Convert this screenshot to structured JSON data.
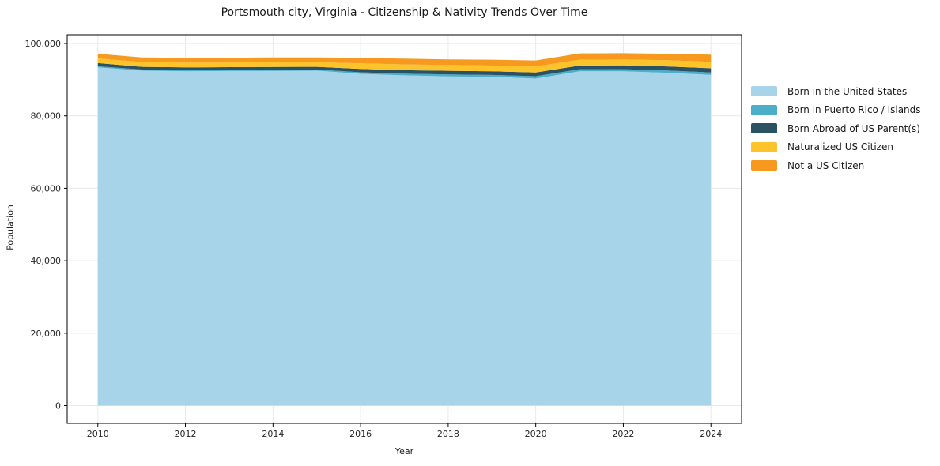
{
  "chart_data": {
    "type": "area",
    "stacked": true,
    "title": "Portsmouth city, Virginia - Citizenship & Nativity Trends Over Time",
    "xlabel": "Year",
    "ylabel": "Population",
    "x": [
      2010,
      2011,
      2012,
      2013,
      2014,
      2015,
      2016,
      2017,
      2018,
      2019,
      2020,
      2021,
      2022,
      2023,
      2024
    ],
    "series": [
      {
        "name": "Born in the United States",
        "color": "#A7D4E9",
        "values": [
          93400,
          92500,
          92300,
          92400,
          92400,
          92500,
          91600,
          91200,
          90900,
          90800,
          90300,
          92300,
          92300,
          91900,
          91300
        ]
      },
      {
        "name": "Born in Puerto Rico / Islands",
        "color": "#4CAEC9",
        "values": [
          300,
          300,
          350,
          300,
          350,
          300,
          450,
          450,
          550,
          500,
          650,
          600,
          600,
          650,
          700
        ]
      },
      {
        "name": "Born Abroad of US Parent(s)",
        "color": "#2B5263",
        "values": [
          900,
          750,
          750,
          750,
          750,
          750,
          900,
          950,
          1000,
          1000,
          1050,
          1000,
          1050,
          1100,
          1150
        ]
      },
      {
        "name": "Naturalized US Citizen",
        "color": "#FDC32B",
        "values": [
          1250,
          1300,
          1300,
          1300,
          1300,
          1300,
          1550,
          1600,
          1600,
          1600,
          1650,
          1600,
          1600,
          1700,
          1750
        ]
      },
      {
        "name": "Not a US Citizen",
        "color": "#F8991F",
        "values": [
          1300,
          1300,
          1300,
          1300,
          1350,
          1300,
          1500,
          1600,
          1550,
          1600,
          1650,
          1750,
          1750,
          1800,
          2000
        ]
      }
    ],
    "xticks": [
      2010,
      2012,
      2014,
      2016,
      2018,
      2020,
      2022,
      2024
    ],
    "xtick_labels": [
      "2010",
      "2012",
      "2014",
      "2016",
      "2018",
      "2020",
      "2022",
      "2024"
    ],
    "yticks": [
      0,
      20000,
      40000,
      60000,
      80000,
      100000
    ],
    "ytick_labels": [
      "0",
      "20,000",
      "40,000",
      "60,000",
      "80,000",
      "100,000"
    ],
    "xlim": [
      2009.3,
      2024.7
    ],
    "ylim": [
      -4900,
      102400
    ],
    "grid": true,
    "grid_color": "#e9e9e9",
    "spine_color": "#000000",
    "legend_position": "right-outside"
  }
}
